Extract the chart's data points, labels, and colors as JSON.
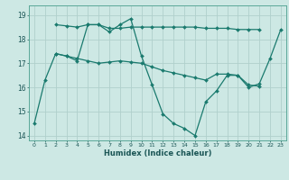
{
  "xlabel": "Humidex (Indice chaleur)",
  "background_color": "#cde8e4",
  "grid_color": "#b0d0cc",
  "line_color": "#1a7a6e",
  "xlim": [
    -0.5,
    23.5
  ],
  "ylim": [
    13.8,
    19.4
  ],
  "yticks": [
    14,
    15,
    16,
    17,
    18,
    19
  ],
  "xticks": [
    0,
    1,
    2,
    3,
    4,
    5,
    6,
    7,
    8,
    9,
    10,
    11,
    12,
    13,
    14,
    15,
    16,
    17,
    18,
    19,
    20,
    21,
    22,
    23
  ],
  "line1_x": [
    0,
    1,
    2,
    3,
    4,
    5,
    6,
    7,
    8,
    9,
    10,
    11,
    12,
    13,
    14,
    15,
    16,
    17,
    18,
    19,
    20,
    21,
    22,
    23
  ],
  "line1_y": [
    14.5,
    16.3,
    17.4,
    17.3,
    17.1,
    18.6,
    18.6,
    18.3,
    18.6,
    18.85,
    17.3,
    16.1,
    14.9,
    14.5,
    14.3,
    14.0,
    15.4,
    15.85,
    16.5,
    16.5,
    16.0,
    16.15,
    17.2,
    18.4
  ],
  "line2_x": [
    2,
    3,
    4,
    5,
    6,
    7,
    8,
    9,
    10,
    11,
    12,
    13,
    14,
    15,
    16,
    17,
    18,
    19,
    20,
    21
  ],
  "line2_y": [
    18.6,
    18.55,
    18.5,
    18.6,
    18.6,
    18.45,
    18.45,
    18.5,
    18.5,
    18.5,
    18.5,
    18.5,
    18.5,
    18.5,
    18.45,
    18.45,
    18.45,
    18.4,
    18.4,
    18.4
  ],
  "line3_x": [
    2,
    3,
    4,
    5,
    6,
    7,
    8,
    9,
    10,
    11,
    12,
    13,
    14,
    15,
    16,
    17,
    18,
    19,
    20,
    21
  ],
  "line3_y": [
    17.4,
    17.3,
    17.2,
    17.1,
    17.0,
    17.05,
    17.1,
    17.05,
    17.0,
    16.85,
    16.7,
    16.6,
    16.5,
    16.4,
    16.3,
    16.55,
    16.55,
    16.5,
    16.1,
    16.05
  ]
}
